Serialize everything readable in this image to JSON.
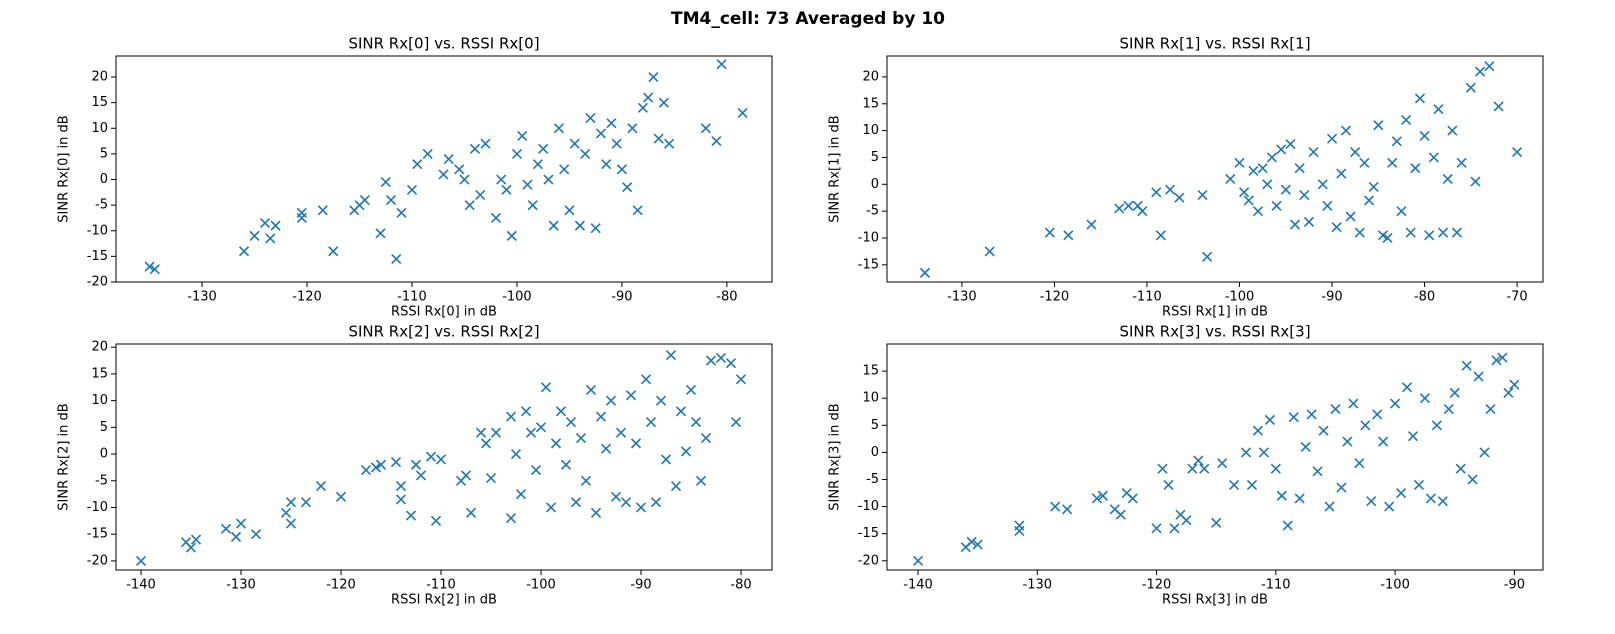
{
  "title": "TM4_cell: 73 Averaged by 10",
  "chart_data": [
    {
      "type": "scatter",
      "title": "SINR Rx[0] vs. RSSI Rx[0]",
      "x_label": "RSSI Rx[0] in dB",
      "y_label": "SINR Rx[0] in dB",
      "color": "#1f77b4",
      "marker": "x",
      "xlim": [
        -138.2,
        -75.7
      ],
      "ylim": [
        -20,
        24.1
      ],
      "xticks": [
        -130,
        -120,
        -110,
        -100,
        -90,
        -80
      ],
      "yticks": [
        -20,
        -15,
        -10,
        -5,
        0,
        5,
        10,
        15,
        20
      ],
      "x": [
        -135,
        -134.5,
        -126,
        -125,
        -124,
        -123.5,
        -123,
        -120.5,
        -120.5,
        -118.5,
        -117.5,
        -115.5,
        -115,
        -114.5,
        -113,
        -112.5,
        -112,
        -111.5,
        -111,
        -110,
        -109.5,
        -108.5,
        -107,
        -106.5,
        -105.5,
        -105,
        -104.5,
        -104,
        -103.5,
        -103,
        -102,
        -101.5,
        -101,
        -100.5,
        -100,
        -99.5,
        -99,
        -98.5,
        -98,
        -97.5,
        -97,
        -96.5,
        -96,
        -95.5,
        -95,
        -94.5,
        -94,
        -93.5,
        -93,
        -92.5,
        -92,
        -91.5,
        -91,
        -90.5,
        -90,
        -89.5,
        -89,
        -88.5,
        -88,
        -87.5,
        -87,
        -86.5,
        -86,
        -85.5,
        -82,
        -81,
        -80.5,
        -78.5
      ],
      "y": [
        -17,
        -17.5,
        -14,
        -11,
        -8.5,
        -11.5,
        -9,
        -6.5,
        -7.5,
        -6,
        -14,
        -6,
        -5,
        -4,
        -10.5,
        -0.5,
        -4,
        -15.5,
        -6.5,
        -2,
        3,
        5,
        1,
        4,
        2,
        0,
        -5,
        6,
        -3,
        7,
        -7.5,
        0,
        -2,
        -11,
        5,
        8.5,
        -1,
        -5,
        3,
        6,
        0,
        -9,
        10,
        2,
        -6,
        7,
        -9,
        5,
        12,
        -9.5,
        9,
        3,
        11,
        7,
        2,
        -1.5,
        10,
        -6,
        14,
        16,
        20,
        8,
        15,
        7,
        10,
        7.5,
        22.5,
        13
      ]
    },
    {
      "type": "scatter",
      "title": "SINR Rx[1] vs. RSSI Rx[1]",
      "x_label": "RSSI Rx[1] in dB",
      "y_label": "SINR Rx[1] in dB",
      "color": "#1f77b4",
      "marker": "x",
      "xlim": [
        -138.1,
        -67.2
      ],
      "ylim": [
        -18.2,
        23.9
      ],
      "xticks": [
        -130,
        -120,
        -110,
        -100,
        -90,
        -80,
        -70
      ],
      "yticks": [
        -15,
        -10,
        -5,
        0,
        5,
        10,
        15,
        20
      ],
      "x": [
        -134,
        -127,
        -120.5,
        -118.5,
        -116,
        -113,
        -112,
        -111,
        -110.5,
        -109,
        -108.5,
        -107.5,
        -106.5,
        -104,
        -103.5,
        -101,
        -100,
        -99.5,
        -99,
        -98.5,
        -98,
        -97.5,
        -97,
        -96.5,
        -96,
        -95.5,
        -95,
        -94.5,
        -94,
        -93.5,
        -93,
        -92.5,
        -92,
        -91,
        -90.5,
        -90,
        -89.5,
        -89,
        -88.5,
        -88,
        -87.5,
        -87,
        -86.5,
        -86,
        -85.5,
        -85,
        -84.5,
        -84,
        -83.5,
        -83,
        -82.5,
        -82,
        -81.5,
        -81,
        -80.5,
        -80,
        -79.5,
        -79,
        -78.5,
        -78,
        -77.5,
        -77,
        -76.5,
        -76,
        -75,
        -74.5,
        -74,
        -73,
        -72,
        -70
      ],
      "y": [
        -16.5,
        -12.5,
        -9,
        -9.5,
        -7.5,
        -4.5,
        -4,
        -4,
        -5,
        -1.5,
        -9.5,
        -1,
        -2.5,
        -2,
        -13.5,
        1,
        4,
        -1.5,
        -3,
        2.5,
        -5,
        3,
        0,
        5,
        -4,
        6.5,
        -1,
        7.5,
        -7.5,
        3,
        -2,
        -7,
        6,
        0,
        -4,
        8.5,
        -8,
        2,
        10,
        -6,
        6,
        -9,
        4,
        -3,
        -0.5,
        11,
        -9.5,
        -10,
        4,
        8,
        -5,
        12,
        -9,
        3,
        16,
        9,
        -9.5,
        5,
        14,
        -9,
        1,
        10,
        -9,
        4,
        18,
        0.5,
        21,
        22,
        14.5,
        6
      ]
    },
    {
      "type": "scatter",
      "title": "SINR Rx[2] vs. RSSI Rx[2]",
      "x_label": "RSSI Rx[2] in dB",
      "y_label": "SINR Rx[2] in dB",
      "color": "#1f77b4",
      "marker": "x",
      "xlim": [
        -142.5,
        -76.9
      ],
      "ylim": [
        -21.7,
        20.6
      ],
      "xticks": [
        -140,
        -130,
        -120,
        -110,
        -100,
        -90,
        -80
      ],
      "yticks": [
        -20,
        -15,
        -10,
        -5,
        0,
        5,
        10,
        15,
        20
      ],
      "x": [
        -140,
        -135.5,
        -135,
        -134.5,
        -131.5,
        -130.5,
        -130,
        -128.5,
        -125.5,
        -125,
        -125,
        -123.5,
        -122,
        -120,
        -117.5,
        -116.5,
        -116,
        -114.5,
        -114,
        -114,
        -113,
        -112.5,
        -112,
        -111,
        -110.5,
        -110,
        -108,
        -107.5,
        -107,
        -106,
        -105.5,
        -105,
        -104.5,
        -103,
        -103,
        -102.5,
        -102,
        -101.5,
        -101,
        -100.5,
        -100,
        -99.5,
        -99,
        -98.5,
        -98,
        -97.5,
        -97,
        -96.5,
        -96,
        -95.5,
        -95,
        -94.5,
        -94,
        -93.5,
        -93,
        -92.5,
        -92,
        -91.5,
        -91,
        -90.5,
        -90,
        -89.5,
        -89,
        -88.5,
        -88,
        -87.5,
        -87,
        -86.5,
        -86,
        -85.5,
        -85,
        -84.5,
        -84,
        -83.5,
        -83,
        -82,
        -81,
        -80.5,
        -80
      ],
      "y": [
        -20,
        -16.5,
        -17.5,
        -16,
        -14,
        -15.5,
        -13,
        -15,
        -11,
        -9,
        -13,
        -9,
        -6,
        -8,
        -3,
        -2.5,
        -2,
        -1.5,
        -6,
        -8.5,
        -11.5,
        -2,
        -4,
        -0.5,
        -12.5,
        -1,
        -5,
        -4,
        -11,
        4,
        2,
        -4.5,
        4,
        7,
        -12,
        0,
        -7.5,
        8,
        4,
        -3,
        5,
        12.5,
        -10,
        2,
        8,
        -2,
        6,
        -9,
        3,
        -5,
        12,
        -11,
        7,
        1,
        10,
        -8,
        4,
        -9,
        11,
        2,
        -10,
        14,
        6,
        -9,
        10,
        -1,
        18.5,
        -6,
        8,
        0.5,
        12,
        6,
        -5,
        3,
        17.5,
        18,
        17,
        6,
        14
      ]
    },
    {
      "type": "scatter",
      "title": "SINR Rx[3] vs. RSSI Rx[3]",
      "x_label": "RSSI Rx[3] in dB",
      "y_label": "SINR Rx[3] in dB",
      "color": "#1f77b4",
      "marker": "x",
      "xlim": [
        -142.6,
        -87.6
      ],
      "ylim": [
        -21.7,
        20
      ],
      "xticks": [
        -140,
        -130,
        -120,
        -110,
        -100,
        -90
      ],
      "yticks": [
        -20,
        -15,
        -10,
        -5,
        0,
        5,
        10,
        15
      ],
      "x": [
        -140,
        -136,
        -135.5,
        -135,
        -131.5,
        -131.5,
        -128.5,
        -127.5,
        -125,
        -124.5,
        -123.5,
        -123,
        -122.5,
        -122,
        -120,
        -119.5,
        -119,
        -118.5,
        -118,
        -117.5,
        -117,
        -116.5,
        -116,
        -115,
        -114.5,
        -113.5,
        -112.5,
        -112,
        -111.5,
        -111,
        -110.5,
        -110,
        -109.5,
        -109,
        -108.5,
        -108,
        -107.5,
        -107,
        -106.5,
        -106,
        -105.5,
        -105,
        -104.5,
        -104,
        -103.5,
        -103,
        -102.5,
        -102,
        -101.5,
        -101,
        -100.5,
        -100,
        -99.5,
        -99,
        -98.5,
        -98,
        -97.5,
        -97,
        -96.5,
        -96,
        -95.5,
        -95,
        -94.5,
        -94,
        -93.5,
        -93,
        -92.5,
        -92,
        -91.5,
        -91,
        -90,
        -90.5
      ],
      "y": [
        -20,
        -17.5,
        -16.5,
        -17,
        -13.5,
        -14.5,
        -10,
        -10.5,
        -8.5,
        -8,
        -10.5,
        -11.5,
        -7.5,
        -8.5,
        -14,
        -3,
        -6,
        -14,
        -11.5,
        -12.5,
        -3,
        -1.5,
        -3,
        -13,
        -2,
        -6,
        0,
        -6,
        4,
        0,
        6,
        -3,
        -8,
        -13.5,
        6.5,
        -8.5,
        1,
        7,
        -3.5,
        4,
        -10,
        8,
        -6.5,
        2,
        9,
        -2,
        5,
        -9,
        7,
        2,
        -10,
        9,
        -7.5,
        12,
        3,
        -6,
        10,
        -8.5,
        5,
        -9,
        8,
        11,
        -3,
        16,
        -5,
        14,
        0,
        8,
        17,
        17.5,
        12.5,
        11
      ]
    }
  ]
}
